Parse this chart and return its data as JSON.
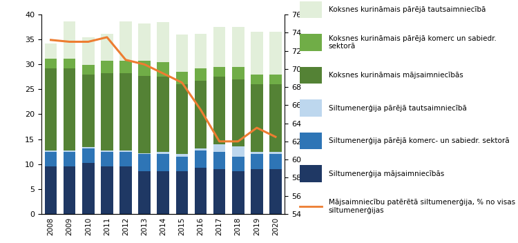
{
  "years": [
    2008,
    2009,
    2010,
    2011,
    2012,
    2013,
    2014,
    2015,
    2016,
    2017,
    2018,
    2019,
    2020
  ],
  "siltum_majsaimn": [
    9.5,
    9.5,
    10.2,
    9.5,
    9.5,
    8.5,
    8.5,
    8.5,
    9.2,
    9.0,
    8.5,
    9.0,
    9.0
  ],
  "siltum_komerc": [
    3.0,
    3.0,
    3.0,
    3.0,
    3.0,
    3.5,
    3.5,
    3.0,
    3.5,
    3.5,
    3.0,
    3.0,
    3.0
  ],
  "siltum_pareja": [
    0.2,
    0.2,
    0.2,
    0.2,
    0.2,
    0.2,
    0.5,
    0.5,
    0.5,
    1.5,
    2.0,
    0.5,
    0.5
  ],
  "koksne_majsaimn": [
    16.5,
    16.5,
    14.5,
    15.5,
    15.5,
    15.5,
    15.0,
    14.0,
    13.5,
    13.5,
    13.5,
    13.5,
    13.5
  ],
  "koksne_komerc": [
    2.0,
    2.0,
    2.0,
    2.5,
    2.5,
    3.0,
    3.0,
    2.5,
    2.5,
    2.0,
    2.5,
    2.0,
    2.0
  ],
  "koksne_pareja": [
    3.0,
    7.5,
    5.5,
    5.5,
    8.0,
    7.5,
    8.0,
    7.5,
    7.0,
    8.0,
    8.0,
    8.5,
    8.5
  ],
  "line_values": [
    73.2,
    73.0,
    73.0,
    73.5,
    71.0,
    70.5,
    69.5,
    68.5,
    65.5,
    62.0,
    62.0,
    63.5,
    62.5
  ],
  "color_siltum_majsaimn": "#1f3864",
  "color_siltum_komerc": "#2e75b6",
  "color_siltum_pareja": "#bdd7ee",
  "color_koksne_majsaimn": "#548235",
  "color_koksne_komerc": "#70ad47",
  "color_koksne_pareja": "#e2efda",
  "color_line": "#ed7d31",
  "legend_labels": [
    "Koksnes kurināmais pārējā tautsaimniecībā",
    "Koksnes kurināmais pārējā komerc un sabiedr.\nsektorā",
    "Koksnes kurināmais mājsaimniecībās",
    "Siltumenerģija pārējā tautsaimniecībā",
    "Siltumenerģija pārējā komerc- un sabiedr. sektorā",
    "Siltumenerģija mājsaimniecībās",
    "Mājsaimniecību patērētā siltumenerģija, % no visas\nsiltumenerģijas"
  ],
  "ylim_left": [
    0,
    40
  ],
  "ylim_right": [
    54,
    76
  ],
  "yticks_left": [
    0,
    5,
    10,
    15,
    20,
    25,
    30,
    35,
    40
  ],
  "yticks_right": [
    54,
    56,
    58,
    60,
    62,
    64,
    66,
    68,
    70,
    72,
    74,
    76
  ]
}
